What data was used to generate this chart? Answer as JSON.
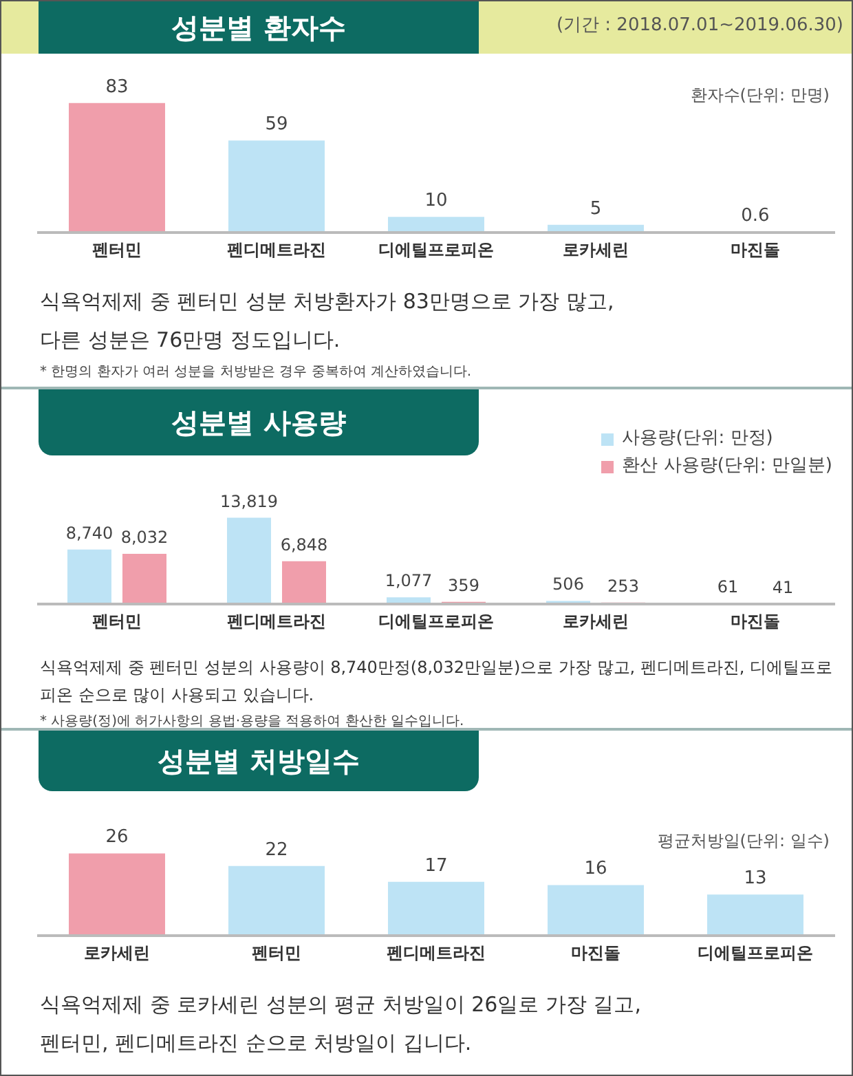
{
  "chart_data": [
    {
      "type": "bar",
      "title": "성분별 환자수",
      "subtitle": "(기간 : 2018.07.01~2019.06.30)",
      "ylabel": "환자수(단위: 만명)",
      "categories": [
        "펜터민",
        "펜디메트라진",
        "디에틸프로피온",
        "로카세린",
        "마진돌"
      ],
      "values": [
        83,
        59,
        10,
        5,
        0.6
      ],
      "colors": [
        "#f09eab",
        "#bde3f5",
        "#bde3f5",
        "#bde3f5",
        "#bde3f5"
      ],
      "data_labels": true,
      "annotations": [
        "식욕억제제 중 펜터민 성분 처방환자가 83만명으로 가장 많고,",
        "다른 성분은 76만명 정도입니다.",
        "* 한명의 환자가 여러 성분을 처방받은 경우 중복하여 계산하였습니다."
      ]
    },
    {
      "type": "bar",
      "title": "성분별 사용량",
      "legend": "top right",
      "categories": [
        "펜터민",
        "펜디메트라진",
        "디에틸프로피온",
        "로카세린",
        "마진돌"
      ],
      "series": [
        {
          "name": "사용량(단위: 만정)",
          "color": "#bde3f5",
          "values": [
            8740,
            13819,
            1077,
            506,
            61
          ],
          "value_labels": [
            "8,740",
            "13,819",
            "1,077",
            "506",
            "61"
          ]
        },
        {
          "name": "환산 사용량(단위: 만일분)",
          "color": "#f09eab",
          "values": [
            8032,
            6848,
            359,
            253,
            41
          ],
          "value_labels": [
            "8,032",
            "6,848",
            "359",
            "253",
            "41"
          ]
        }
      ],
      "annotations": [
        "식욕억제제 중 펜터민 성분의 사용량이 8,740만정(8,032만일분)으로 가장 많고, 펜디메트라진, 디에틸프로피온 순으로 많이 사용되고 있습니다.",
        "* 사용량(정)에 허가사항의 용법·용량을 적용하여 환산한 일수입니다."
      ]
    },
    {
      "type": "bar",
      "title": "성분별 처방일수",
      "ylabel": "평균처방일(단위: 일수)",
      "categories": [
        "로카세린",
        "펜터민",
        "펜디메트라진",
        "마진돌",
        "디에틸프로피온"
      ],
      "values": [
        26,
        22,
        17,
        16,
        13
      ],
      "colors": [
        "#f09eab",
        "#bde3f5",
        "#bde3f5",
        "#bde3f5",
        "#bde3f5"
      ],
      "data_labels": true,
      "annotations": [
        "식욕억제제 중 로카세린 성분의 평균 처방일이 26일로 가장 길고,",
        "펜터민, 펜디메트라진 순으로 처방일이 깁니다."
      ]
    }
  ]
}
